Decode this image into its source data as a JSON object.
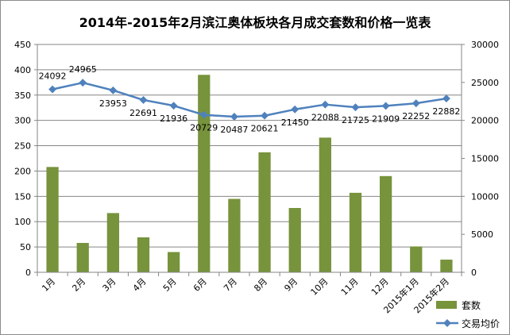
{
  "chart_data": {
    "type": "bar",
    "title": "2014年-2015年2月滨江奥体板块各月成交套数和价格一览表",
    "categories": [
      "1月",
      "2月",
      "3月",
      "4月",
      "5月",
      "6月",
      "7月",
      "8月",
      "9月",
      "10月",
      "11月",
      "12月",
      "2015年1月",
      "2015年2月"
    ],
    "series": [
      {
        "name": "套数",
        "type": "bar",
        "axis": "left",
        "color": "#77933c",
        "values": [
          208,
          58,
          117,
          69,
          40,
          390,
          145,
          237,
          127,
          266,
          157,
          190,
          51,
          25
        ]
      },
      {
        "name": "交易均价",
        "type": "line",
        "axis": "right",
        "color": "#4f81bd",
        "values": [
          24092,
          24965,
          23953,
          22691,
          21936,
          20729,
          20487,
          20621,
          21450,
          22088,
          21725,
          21909,
          22252,
          22882
        ],
        "labels": [
          "24092",
          "24965",
          "23953",
          "22691",
          "21936",
          "20729",
          "20487",
          "20621",
          "21450",
          "22088",
          "21725",
          "21909",
          "22252",
          "22882"
        ]
      }
    ],
    "y_left": {
      "min": 0,
      "max": 450,
      "step": 50,
      "ticks": [
        "0",
        "50",
        "100",
        "150",
        "200",
        "250",
        "300",
        "350",
        "400",
        "450"
      ]
    },
    "y_right": {
      "min": 0,
      "max": 30000,
      "step": 5000,
      "ticks": [
        "0",
        "5000",
        "10000",
        "15000",
        "20000",
        "25000",
        "30000"
      ]
    },
    "grid": true,
    "legend_position": "bottom-right"
  }
}
